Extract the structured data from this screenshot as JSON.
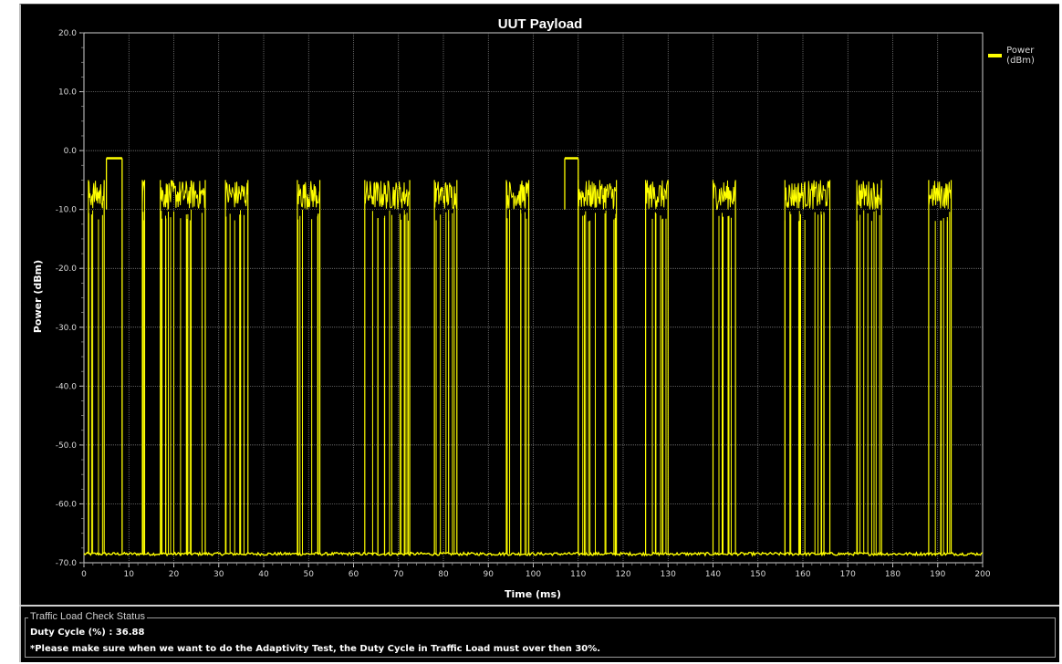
{
  "chart_data": {
    "type": "line",
    "title": "UUT Payload",
    "xlabel": "Time (ms)",
    "ylabel": "Power (dBm)",
    "xlim": [
      0,
      200
    ],
    "ylim": [
      -70,
      20
    ],
    "x_ticks": [
      "0",
      "10",
      "20",
      "30",
      "40",
      "50",
      "60",
      "70",
      "80",
      "90",
      "100",
      "110",
      "120",
      "130",
      "140",
      "150",
      "160",
      "170",
      "180",
      "190",
      "200"
    ],
    "y_ticks": [
      "20.0",
      "10.0",
      "0.0",
      "-10.0",
      "-20.0",
      "-30.0",
      "-40.0",
      "-50.0",
      "-60.0",
      "-70.0"
    ],
    "grid": true,
    "legend_position": "top-right",
    "series": [
      {
        "name": "Power (dBm)",
        "color": "#ffff00",
        "floor_dbm": -68.5,
        "burst_level_dbm": [
          -10,
          -5
        ],
        "bursts_ms": [
          [
            1,
            4.5
          ],
          [
            13,
            13.5
          ],
          [
            17,
            27
          ],
          [
            31.5,
            36.5
          ],
          [
            47.5,
            52.5
          ],
          [
            62.5,
            72.5
          ],
          [
            78,
            83
          ],
          [
            94,
            99
          ],
          [
            110,
            118.5
          ],
          [
            125,
            130
          ],
          [
            140,
            145
          ],
          [
            156,
            166
          ],
          [
            172,
            177.5
          ],
          [
            188,
            193
          ]
        ],
        "high_segments": [
          {
            "start_ms": 5,
            "end_ms": 8.5,
            "power_dbm": -1.3
          },
          {
            "start_ms": 107,
            "end_ms": 110,
            "power_dbm": -1.3
          }
        ]
      }
    ]
  },
  "status": {
    "legend": "Traffic Load Check Status",
    "duty_cycle": "Duty Cycle (%) : 36.88",
    "note": "*Please make sure when we want to do the Adaptivity Test, the Duty Cycle in Traffic Load must over then 30%."
  }
}
